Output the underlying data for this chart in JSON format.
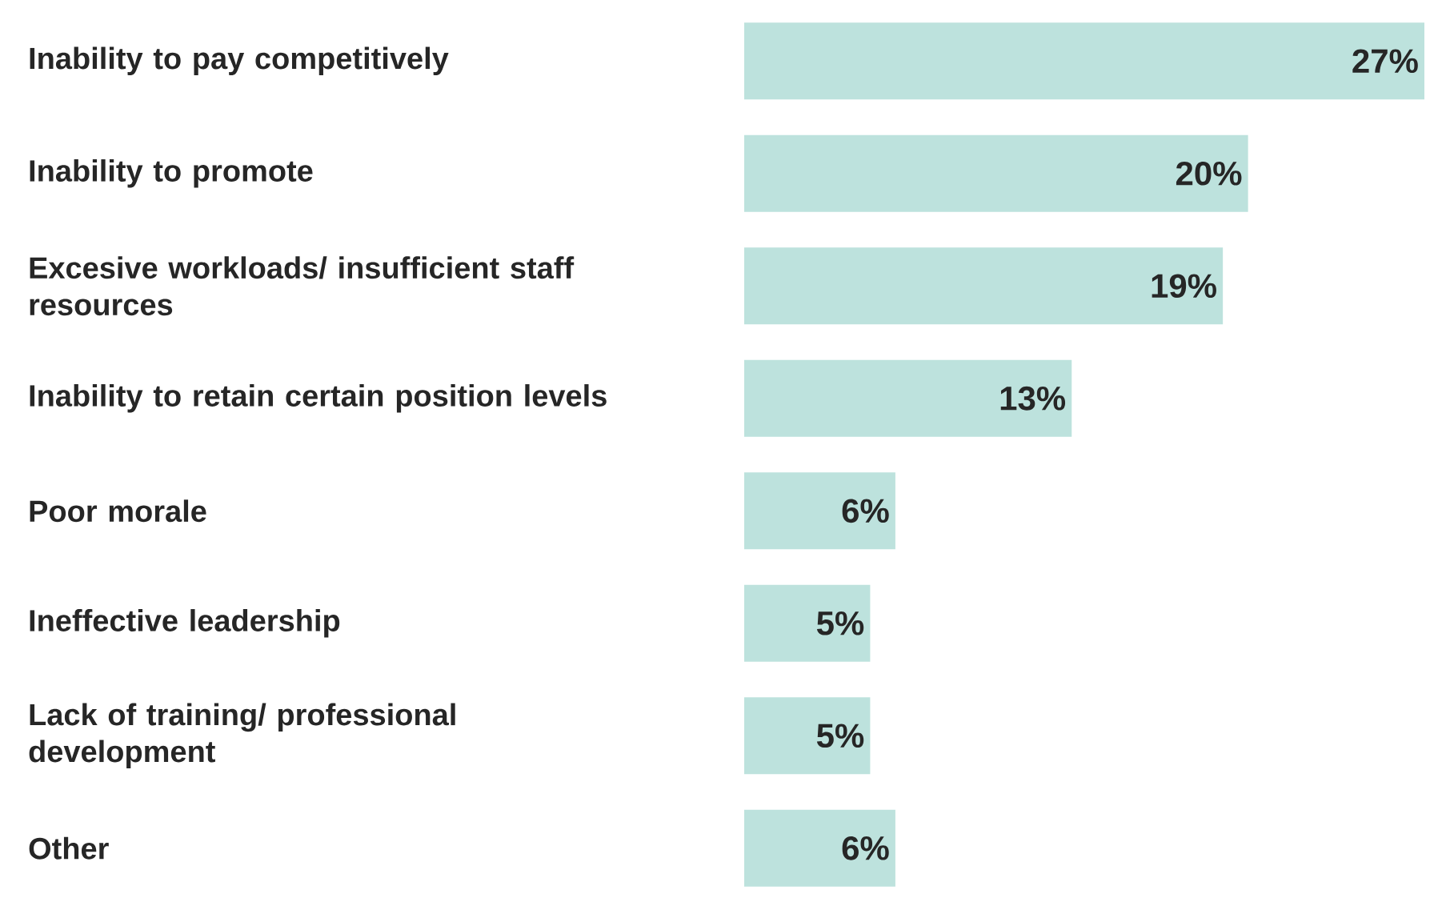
{
  "chart_data": {
    "type": "bar",
    "orientation": "horizontal",
    "categories": [
      "Inability to pay competitively",
      "Inability to promote",
      "Excesive workloads/ insufficient staff resources",
      "Inability to retain certain position levels",
      "Poor morale",
      "Ineffective leadership",
      "Lack of training/ professional development",
      "Other"
    ],
    "values": [
      27,
      20,
      19,
      13,
      6,
      5,
      5,
      6
    ],
    "value_labels": [
      "27%",
      "20%",
      "19%",
      "13%",
      "6%",
      "5%",
      "5%",
      "6%"
    ],
    "color": "#bde2dd"
  }
}
